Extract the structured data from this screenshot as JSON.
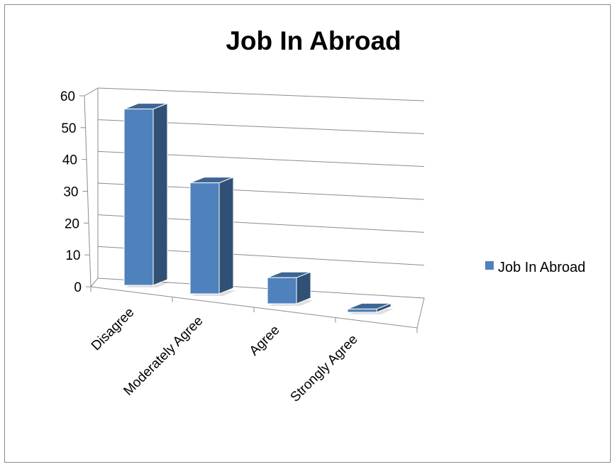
{
  "chart_data": {
    "type": "bar",
    "title": "Job In Abroad",
    "categories": [
      "Disagree",
      "Moderately Agree",
      "Agree",
      "Strongly Agree"
    ],
    "series": [
      {
        "name": "Job In Abroad",
        "values": [
          54,
          34,
          8,
          1
        ],
        "color": "#4f81bd"
      }
    ],
    "yticks": [
      0,
      10,
      20,
      30,
      40,
      50,
      60
    ],
    "ylim": [
      0,
      60
    ],
    "grid": true,
    "legend": "right"
  }
}
